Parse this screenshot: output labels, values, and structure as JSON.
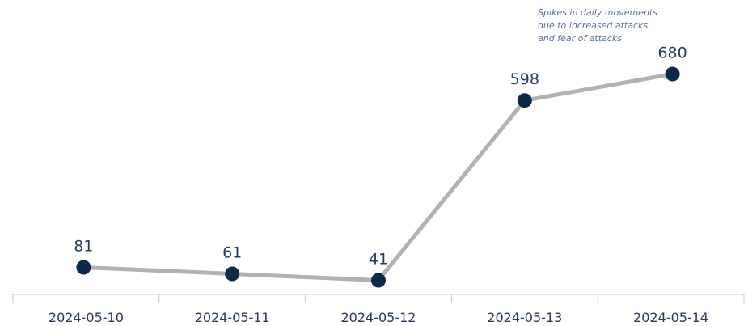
{
  "chart_data": {
    "type": "line",
    "x": [
      "2024-05-10",
      "2024-05-11",
      "2024-05-12",
      "2024-05-13",
      "2024-05-14"
    ],
    "values": [
      81,
      61,
      41,
      598,
      680
    ],
    "data_labels": [
      "81",
      "61",
      "41",
      "598",
      "680"
    ],
    "ylim": [
      0,
      700
    ],
    "grid": false,
    "annotations": [
      {
        "x": "2024-05-14",
        "lines": [
          "Spikes in daily movements",
          "due to increased attacks",
          "and fear of attacks"
        ]
      }
    ],
    "colors": {
      "line": "#b2b2b2",
      "marker": "#0e2847",
      "axis": "#c8c8c8",
      "text": "#2a3a5c",
      "annotation": "#5a6fa0"
    }
  }
}
